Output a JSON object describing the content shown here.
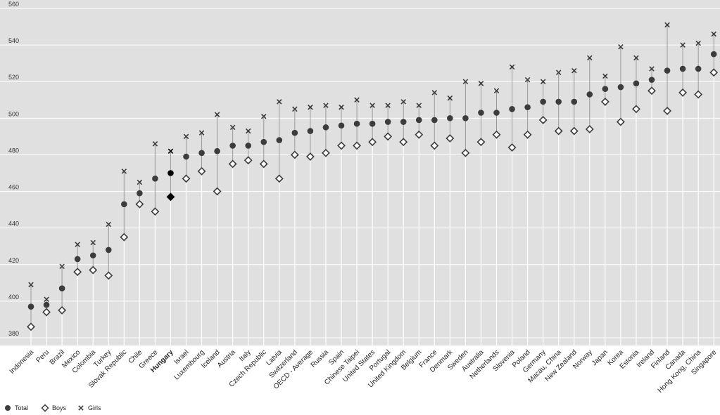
{
  "chart_data": {
    "type": "scatter",
    "title": "",
    "xlabel": "",
    "ylabel": "",
    "ylim": [
      380,
      560
    ],
    "yticks": [
      380,
      400,
      420,
      440,
      460,
      480,
      500,
      520,
      540,
      560
    ],
    "grid": true,
    "legend_position": "bottom-left",
    "highlight_category": "Hungary",
    "categories": [
      "Indonesia",
      "Peru",
      "Brazil",
      "Mexico",
      "Colombia",
      "Turkey",
      "Slovak Republic",
      "Chile",
      "Greece",
      "Hungary",
      "Israel",
      "Luxembourg",
      "Iceland",
      "Austria",
      "Italy",
      "Czech Republic",
      "Latvia",
      "Switzerland",
      "OECD - Average",
      "Russia",
      "Spain",
      "Chinese Taipei",
      "United States",
      "Portugal",
      "United Kingdom",
      "Belgium",
      "France",
      "Denmark",
      "Sweden",
      "Australia",
      "Netherlands",
      "Slovenia",
      "Poland",
      "Germany",
      "Macau, China",
      "New Zealand",
      "Norway",
      "Japan",
      "Korea",
      "Estonia",
      "Ireland",
      "Finland",
      "Canada",
      "Hong Kong, China",
      "Singapore"
    ],
    "series": [
      {
        "name": "Total",
        "marker": "circle",
        "values": [
          397,
          398,
          407,
          423,
          425,
          428,
          453,
          459,
          467,
          470,
          479,
          481,
          482,
          485,
          485,
          487,
          488,
          492,
          493,
          495,
          496,
          497,
          497,
          498,
          498,
          499,
          499,
          500,
          500,
          503,
          503,
          505,
          506,
          509,
          509,
          509,
          513,
          516,
          517,
          519,
          521,
          526,
          527,
          527,
          535
        ]
      },
      {
        "name": "Boys",
        "marker": "diamond",
        "values": [
          386,
          394,
          395,
          416,
          417,
          414,
          435,
          453,
          449,
          457,
          467,
          471,
          460,
          475,
          477,
          475,
          467,
          480,
          479,
          481,
          485,
          485,
          487,
          490,
          487,
          491,
          485,
          489,
          481,
          487,
          491,
          484,
          491,
          499,
          493,
          493,
          494,
          509,
          498,
          505,
          515,
          504,
          514,
          513,
          525
        ]
      },
      {
        "name": "Girls",
        "marker": "x",
        "values": [
          409,
          401,
          419,
          431,
          432,
          442,
          471,
          465,
          486,
          482,
          490,
          492,
          502,
          495,
          493,
          501,
          509,
          505,
          506,
          507,
          506,
          510,
          507,
          507,
          509,
          507,
          514,
          511,
          520,
          519,
          515,
          528,
          521,
          520,
          525,
          526,
          533,
          523,
          539,
          533,
          527,
          551,
          540,
          541,
          546
        ]
      }
    ]
  },
  "colors": {
    "plot_background": "#e0e0e0",
    "gridline": "#ffffff",
    "range_line": "#9a9a9a",
    "marker": "#3c3c3c",
    "highlight": "#000000"
  }
}
